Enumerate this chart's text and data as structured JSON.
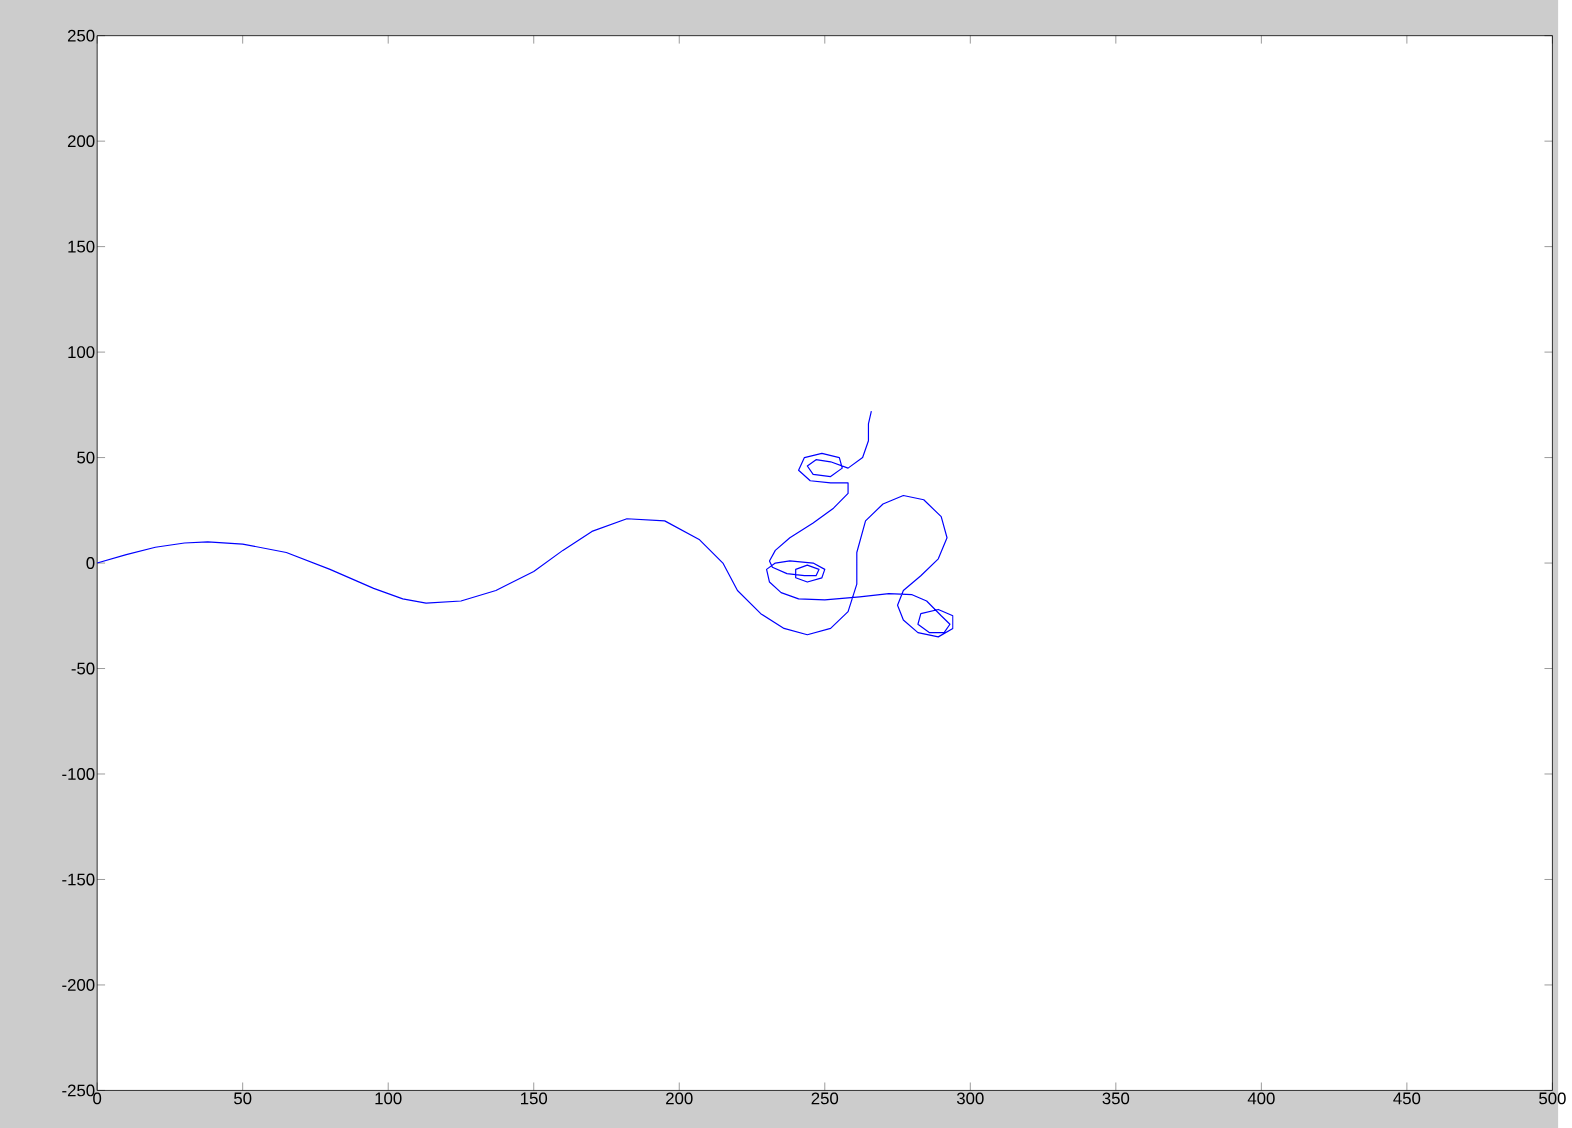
{
  "chart_data": {
    "type": "line",
    "xlim": [
      0,
      500
    ],
    "ylim": [
      -250,
      250
    ],
    "xticks": [
      0,
      50,
      100,
      150,
      200,
      250,
      300,
      350,
      400,
      450,
      500
    ],
    "yticks": [
      -250,
      -200,
      -150,
      -100,
      -50,
      0,
      50,
      100,
      150,
      200,
      250
    ],
    "series": [
      {
        "color": "#0000ff",
        "x": [
          0,
          10,
          20,
          30,
          38,
          50,
          65,
          80,
          95,
          105,
          113,
          125,
          137,
          150,
          160,
          170,
          182,
          195,
          207,
          215,
          220,
          228,
          236,
          244,
          252,
          258,
          261,
          261,
          264,
          270,
          277,
          284,
          290,
          292,
          289,
          283,
          277,
          275,
          277,
          282,
          289,
          294,
          294,
          289,
          283,
          282,
          286,
          291,
          293,
          290,
          285,
          280,
          272,
          262,
          250,
          241,
          235,
          231,
          230,
          233,
          238,
          246,
          250,
          249,
          244,
          240,
          240,
          244,
          248,
          247,
          243,
          237,
          232,
          231,
          233,
          238,
          246,
          253,
          258,
          258,
          252,
          245,
          241,
          243,
          249,
          255,
          256,
          252,
          246,
          244,
          247,
          252,
          258,
          263,
          265,
          265,
          266
        ],
        "values": [
          0,
          4,
          7.5,
          9.5,
          10,
          9,
          5,
          -3,
          -12,
          -17,
          -19,
          -18,
          -13,
          -4,
          6,
          15,
          21,
          20,
          11,
          0,
          -13,
          -24,
          -31,
          -34,
          -31,
          -23,
          -10,
          5,
          20,
          28,
          32,
          30,
          22,
          12,
          2,
          -6,
          -13,
          -20,
          -27,
          -33,
          -35,
          -31,
          -25,
          -22,
          -24,
          -29,
          -33,
          -33,
          -29,
          -25,
          -18,
          -15,
          -14.5,
          -16,
          -17.5,
          -17,
          -14,
          -9,
          -3,
          0,
          1,
          0,
          -3,
          -7,
          -9,
          -7,
          -3,
          -1,
          -3,
          -6,
          -6,
          -5,
          -2,
          1,
          6,
          12,
          19,
          26,
          33,
          38,
          38,
          39,
          44,
          50,
          52,
          50,
          45,
          41,
          42,
          46,
          49,
          48,
          45,
          50,
          58,
          66,
          72
        ]
      }
    ]
  }
}
